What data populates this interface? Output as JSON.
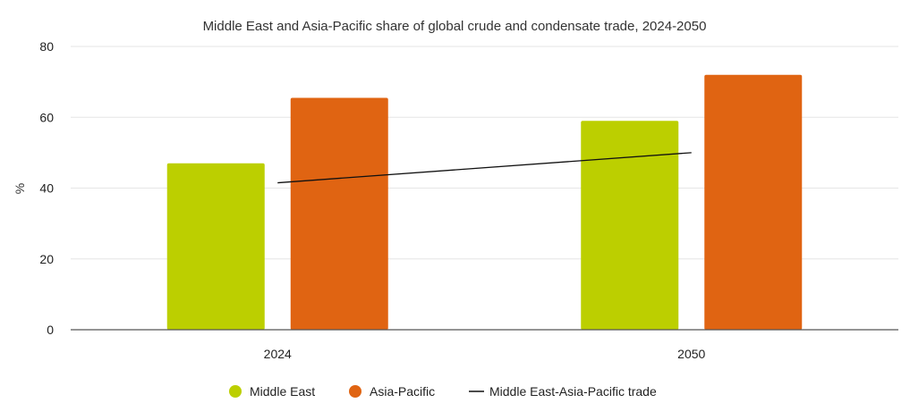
{
  "chart_data": {
    "type": "bar",
    "title": "Middle East and Asia-Pacific share of global crude and condensate trade, 2024-2050",
    "xlabel": "",
    "ylabel": "%",
    "ylim": [
      0,
      80
    ],
    "yticks": [
      0,
      20,
      40,
      60,
      80
    ],
    "categories": [
      "2024",
      "2050"
    ],
    "series": [
      {
        "name": "Middle East",
        "kind": "bar",
        "color": "#bccf00",
        "values": [
          47,
          59
        ]
      },
      {
        "name": "Asia-Pacific",
        "kind": "bar",
        "color": "#e06412",
        "values": [
          65.5,
          72
        ]
      },
      {
        "name": "Middle East-Asia-Pacific trade",
        "kind": "line",
        "color": "#111111",
        "values": [
          41.5,
          50
        ]
      }
    ],
    "grid": true,
    "legend": "bottom-center"
  }
}
